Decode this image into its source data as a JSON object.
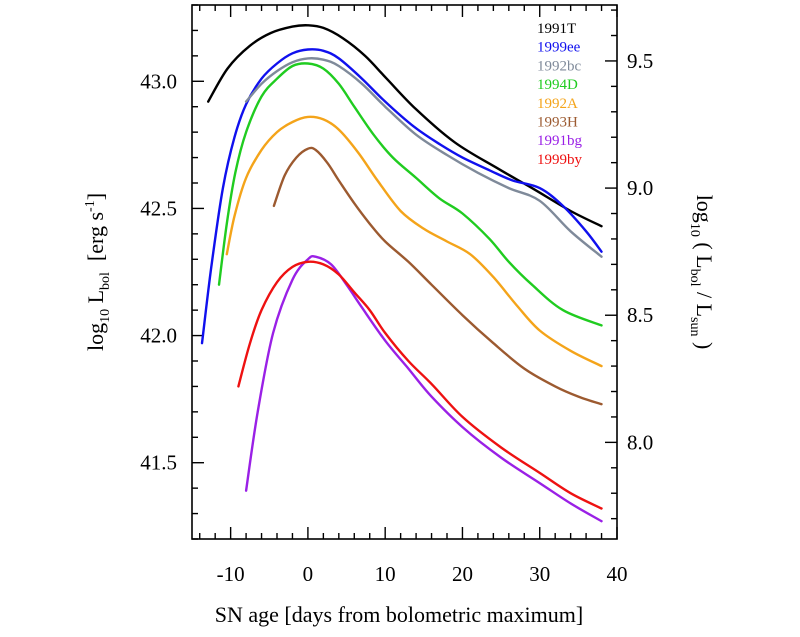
{
  "chart_data": {
    "type": "line",
    "xlabel": "SN age [days from bolometric maximum]",
    "ylabel": {
      "pre": "log",
      "sub": "10",
      "mid": " L",
      "sub2": "bol",
      "post": "  [erg s",
      "sup": "-1",
      "end": "]"
    },
    "y2label": {
      "pre": "log",
      "sub": "10",
      "mid": " ( L",
      "sub2": "bol",
      "mid2": " / L",
      "sub3": "sun",
      "end": " )"
    },
    "xlim": [
      -15,
      40
    ],
    "ylim": [
      41.2,
      43.3
    ],
    "x_ticks": [
      "-10",
      "0",
      "10",
      "20",
      "30",
      "40"
    ],
    "x_tick_values": [
      -10,
      0,
      10,
      20,
      30,
      40
    ],
    "y_ticks": [
      "41.5",
      "42.0",
      "42.5",
      "43.0"
    ],
    "y_tick_values": [
      41.5,
      42.0,
      42.5,
      43.0
    ],
    "y2_ticks": [
      "8.0",
      "8.5",
      "9.0",
      "9.5"
    ],
    "y2_tick_values": [
      8.0,
      8.5,
      9.0,
      9.5
    ],
    "y2_offset": 33.58,
    "grid": false,
    "legend_position": "top-right",
    "series": [
      {
        "name": "1991T",
        "color": "#000000",
        "x": [
          -12.9,
          -10.4,
          -7.5,
          -4.8,
          -2,
          0,
          2,
          4.5,
          7.4,
          10.2,
          14,
          19,
          24.4,
          29,
          34,
          38
        ],
        "y": [
          42.92,
          43.05,
          43.14,
          43.19,
          43.215,
          43.22,
          43.21,
          43.17,
          43.1,
          43.01,
          42.89,
          42.76,
          42.66,
          42.58,
          42.49,
          42.43
        ]
      },
      {
        "name": "1999ee",
        "color": "#1010ee",
        "x": [
          -13.7,
          -12.5,
          -11,
          -9.5,
          -8,
          -6,
          -4,
          -2,
          0,
          2,
          4,
          7,
          10,
          13.8,
          17.2,
          20,
          23.5,
          26.5,
          30,
          33,
          36,
          38
        ],
        "y": [
          41.97,
          42.27,
          42.58,
          42.78,
          42.91,
          43.01,
          43.07,
          43.11,
          43.125,
          43.12,
          43.09,
          43.01,
          42.92,
          42.82,
          42.75,
          42.7,
          42.65,
          42.61,
          42.58,
          42.51,
          42.41,
          42.33
        ]
      },
      {
        "name": "1992bc",
        "color": "#7f8a9a",
        "x": [
          -8,
          -6,
          -4,
          -2,
          0,
          2,
          4,
          7,
          10,
          14,
          18,
          22,
          26,
          30,
          34,
          38
        ],
        "y": [
          42.92,
          42.99,
          43.04,
          43.075,
          43.09,
          43.085,
          43.06,
          42.99,
          42.9,
          42.79,
          42.71,
          42.64,
          42.58,
          42.53,
          42.41,
          42.31
        ]
      },
      {
        "name": "1994D",
        "color": "#20cc20",
        "x": [
          -11.5,
          -10.5,
          -9.4,
          -8,
          -6,
          -4,
          -2,
          0,
          2,
          4,
          6,
          8.5,
          11,
          14,
          17,
          20,
          23.5,
          26,
          29,
          33,
          38
        ],
        "y": [
          42.2,
          42.44,
          42.64,
          42.8,
          42.94,
          43.01,
          43.06,
          43.07,
          43.05,
          42.99,
          42.9,
          42.79,
          42.7,
          42.62,
          42.54,
          42.48,
          42.38,
          42.29,
          42.2,
          42.1,
          42.04
        ]
      },
      {
        "name": "1992A",
        "color": "#f4a41a",
        "x": [
          -10.5,
          -9.5,
          -8,
          -6,
          -4,
          -2,
          0,
          2,
          4,
          6.5,
          9,
          12,
          15,
          18,
          21,
          24,
          27,
          30,
          34,
          38
        ],
        "y": [
          42.32,
          42.47,
          42.62,
          42.73,
          42.8,
          42.84,
          42.86,
          42.85,
          42.81,
          42.72,
          42.61,
          42.49,
          42.42,
          42.37,
          42.32,
          42.23,
          42.12,
          42.02,
          41.94,
          41.88
        ]
      },
      {
        "name": "1993H",
        "color": "#9c5a30",
        "x": [
          -4.4,
          -3,
          -1.5,
          0,
          1,
          2.5,
          4,
          6,
          8,
          10,
          13,
          16,
          20,
          24,
          28,
          32,
          35,
          38
        ],
        "y": [
          42.51,
          42.63,
          42.7,
          42.735,
          42.73,
          42.68,
          42.61,
          42.52,
          42.44,
          42.37,
          42.29,
          42.2,
          42.08,
          41.97,
          41.87,
          41.8,
          41.76,
          41.73
        ]
      },
      {
        "name": "1991bg",
        "color": "#9a20e6",
        "x": [
          -8,
          -6.5,
          -4.5,
          -2,
          0,
          1,
          3,
          5,
          7,
          10,
          13,
          16,
          20,
          25,
          30,
          34,
          38
        ],
        "y": [
          41.39,
          41.7,
          42.01,
          42.22,
          42.3,
          42.31,
          42.28,
          42.2,
          42.11,
          41.98,
          41.87,
          41.76,
          41.64,
          41.52,
          41.42,
          41.34,
          41.27
        ]
      },
      {
        "name": "1999by",
        "color": "#ee1111",
        "x": [
          -9,
          -7.5,
          -6,
          -4,
          -2,
          0,
          2,
          4,
          6,
          8,
          10,
          13,
          16,
          20,
          25,
          30,
          34,
          38
        ],
        "y": [
          41.8,
          41.97,
          42.1,
          42.21,
          42.27,
          42.29,
          42.28,
          42.24,
          42.17,
          42.1,
          42.01,
          41.9,
          41.81,
          41.68,
          41.56,
          41.46,
          41.38,
          41.32
        ]
      }
    ]
  }
}
